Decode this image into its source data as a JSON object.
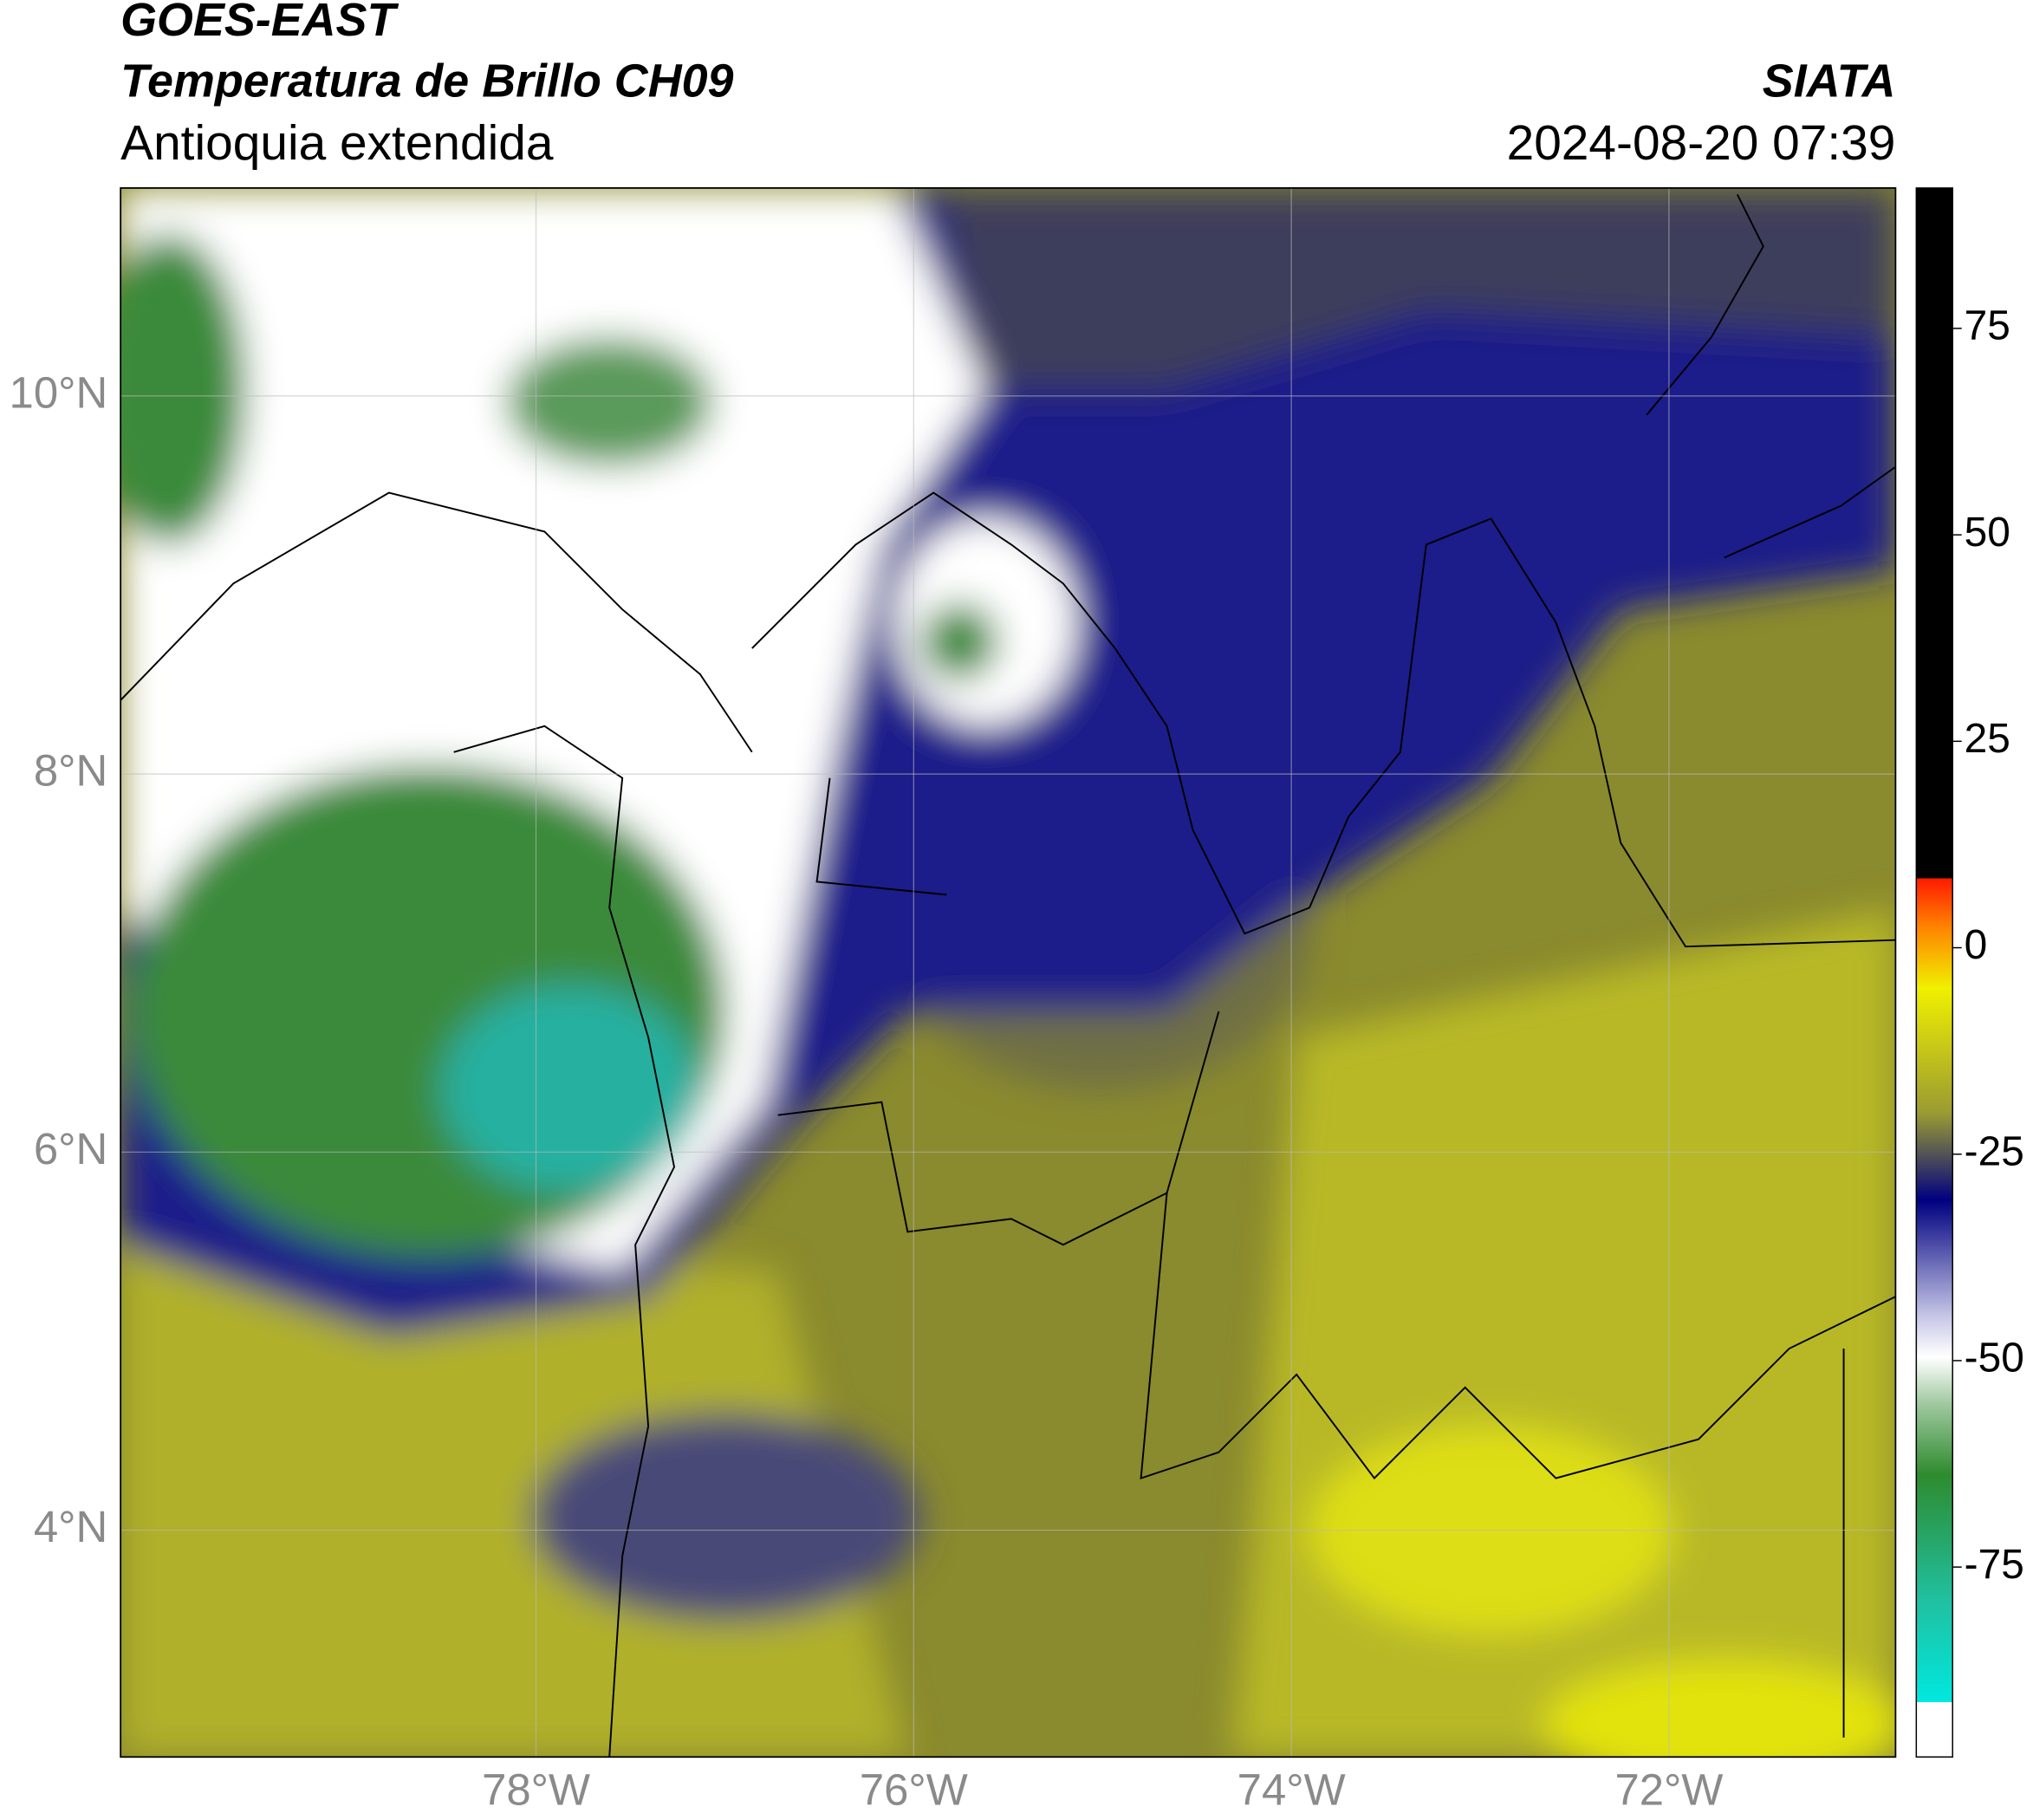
{
  "header": {
    "title": "GOES-EAST",
    "subtitle": "Temperatura de Brillo CH09",
    "region": "Antioquia extendida",
    "source": "SIATA",
    "datetime": "2024-08-20 07:39"
  },
  "chart_data": {
    "type": "map",
    "xlim": [
      -80.2,
      -70.8
    ],
    "ylim": [
      2.8,
      11.1
    ],
    "xticks": [
      {
        "value": -78,
        "label": "78°W"
      },
      {
        "value": -76,
        "label": "76°W"
      },
      {
        "value": -74,
        "label": "74°W"
      },
      {
        "value": -72,
        "label": "72°W"
      }
    ],
    "yticks": [
      {
        "value": 4,
        "label": "4°N"
      },
      {
        "value": 6,
        "label": "6°N"
      },
      {
        "value": 8,
        "label": "8°N"
      },
      {
        "value": 10,
        "label": "10°N"
      }
    ],
    "grid": true,
    "colorbar": {
      "lim": [
        -98,
        92
      ],
      "ticks": [
        -75,
        -50,
        -25,
        0,
        25,
        50,
        75
      ]
    }
  }
}
